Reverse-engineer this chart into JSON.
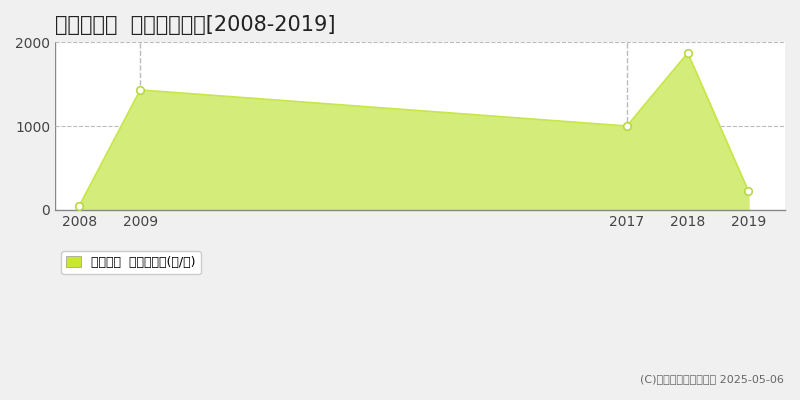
{
  "title": "白鷹町荒砥  林地価格推移[2008-2019]",
  "years": [
    2008,
    2009,
    2017,
    2018,
    2019
  ],
  "values": [
    50,
    1430,
    1000,
    1870,
    220
  ],
  "line_color": "#c8e64a",
  "fill_color": "#d4ed7a",
  "marker_facecolor": "#ffffff",
  "marker_edgecolor": "#b8d840",
  "ylim": [
    0,
    2000
  ],
  "yticks": [
    0,
    1000,
    2000
  ],
  "xlim_min": 2007.6,
  "xlim_max": 2019.6,
  "plot_bg_color": "#ffffff",
  "fig_bg_color": "#f0f0f0",
  "grid_color": "#bbbbbb",
  "legend_label": "林地価格  平均坪単価(円/坪)",
  "legend_square_color": "#c8e632",
  "copyright_text": "(C)土地価格ドットコム 2025-05-06",
  "dashed_vlines_x": [
    2009,
    2017
  ],
  "title_fontsize": 15,
  "tick_fontsize": 10,
  "legend_fontsize": 9,
  "copyright_fontsize": 8,
  "spine_color": "#888888"
}
